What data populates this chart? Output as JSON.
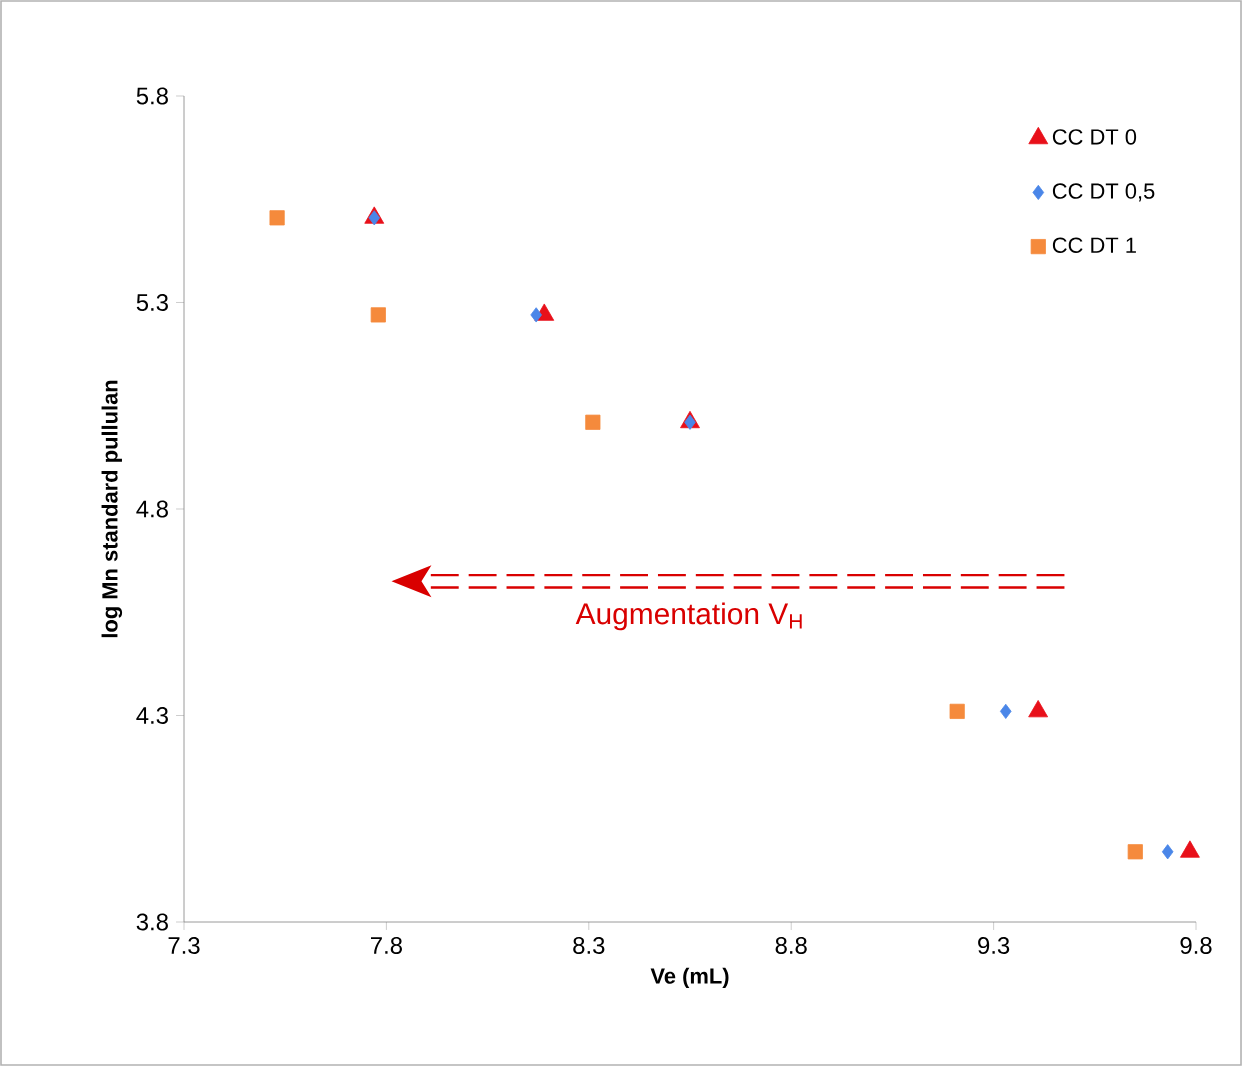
{
  "chart_data": {
    "type": "scatter",
    "xlabel": "Ve (mL)",
    "ylabel": "log Mn standard pullulan",
    "xlim": [
      7.3,
      9.8
    ],
    "xticks": [
      7.3,
      7.8,
      8.3,
      8.8,
      9.3,
      9.8
    ],
    "ylim": [
      3.8,
      5.8
    ],
    "yticks": [
      3.8,
      4.3,
      4.8,
      5.3,
      5.8
    ],
    "legend": "top right",
    "grid": false,
    "annotations": [
      "Augmentation V$_{H}$"
    ],
    "series": [
      {
        "name": "CC DT 0",
        "color": "#e8101a",
        "marker": "triangle",
        "x": [
          7.77,
          8.19,
          8.55,
          9.41,
          9.785
        ],
        "values": [
          5.505,
          5.27,
          5.01,
          4.31,
          3.97
        ]
      },
      {
        "name": "CC DT 0,5",
        "color": "#4a86e8",
        "marker": "diamond",
        "x": [
          7.77,
          8.17,
          8.55,
          9.33,
          9.73
        ],
        "values": [
          5.505,
          5.27,
          5.01,
          4.31,
          3.97
        ]
      },
      {
        "name": "CC DT 1",
        "color": "#f58a3c",
        "marker": "square",
        "x": [
          7.53,
          7.78,
          8.31,
          9.21,
          9.65
        ],
        "values": [
          5.505,
          5.27,
          5.01,
          4.31,
          3.97
        ]
      }
    ]
  }
}
